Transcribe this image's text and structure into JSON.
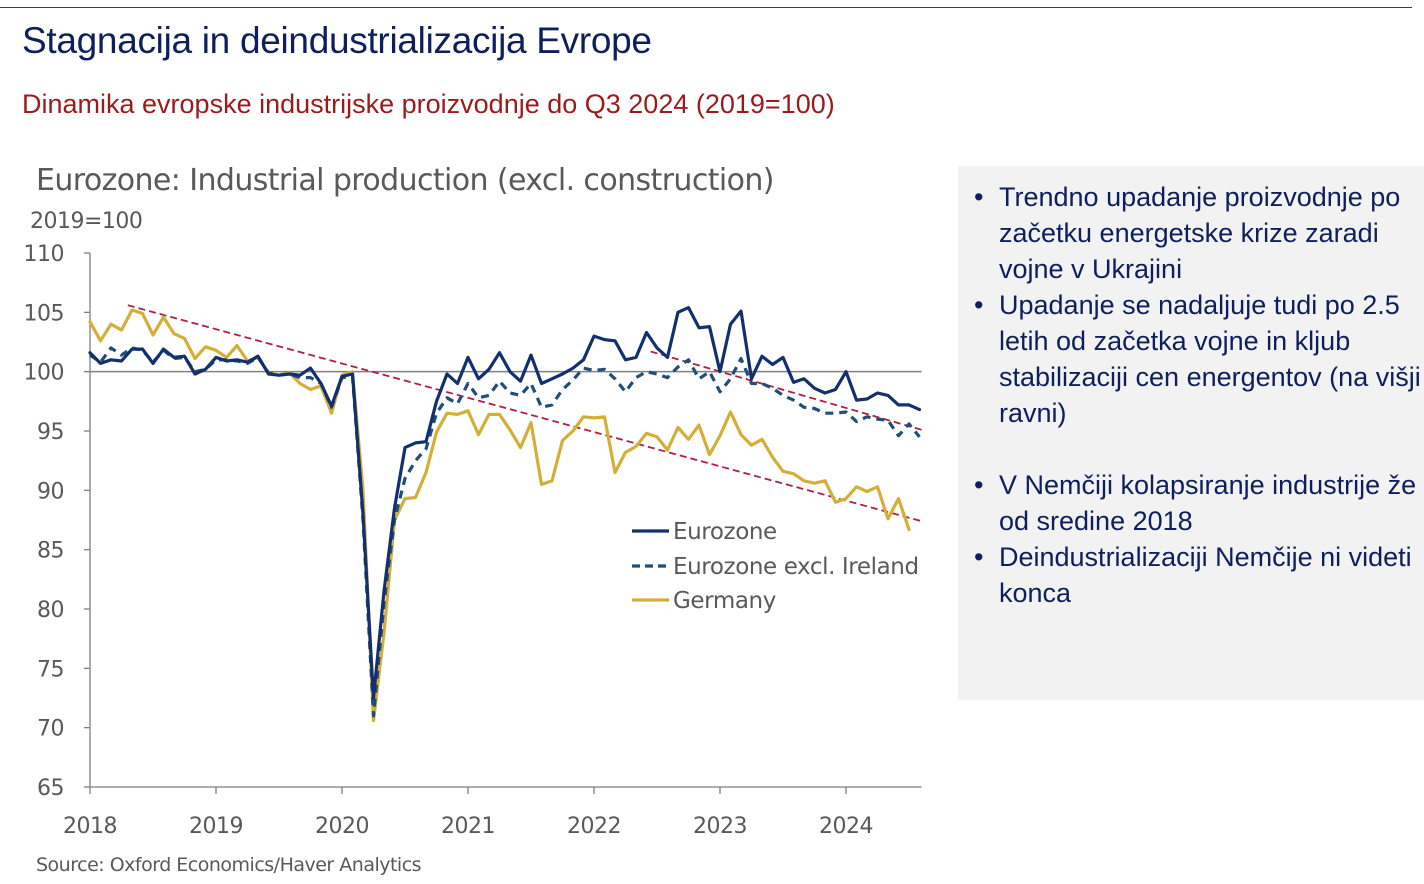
{
  "slide": {
    "title": "Stagnacija in deindustrializacija Evrope",
    "subtitle": "Dinamika evropske industrijske proizvodnje do Q3 2024 (2019=100)"
  },
  "sidebar": {
    "bullets_group1": [
      "Trendno upadanje proizvodnje po začetku energetske krize zaradi vojne v Ukrajini",
      "Upadanje se nadaljuje tudi po 2.5 letih od začetka vojne in kljub stabilizaciji cen energentov (na višji ravni)"
    ],
    "bullets_group2": [
      "V Nemčiji kolapsiranje industrije že od sredine 2018",
      "Deindustrializaciji Nemčije ni videti konca"
    ]
  },
  "colors": {
    "title": "#0d1f5c",
    "subtitle": "#9b1b1b",
    "eurozone": "#13306e",
    "eurozone_excl_ireland": "#1f4e79",
    "germany": "#d4af37",
    "trendline": "#b0203f",
    "sidebar_bg": "#f2f2f2"
  },
  "chart_data": {
    "type": "line",
    "title": "Eurozone: Industrial production (excl. construction)",
    "ylabel": "2019=100",
    "xlabel": "",
    "source": "Source: Oxford Economics/Haver Analytics",
    "ylim": [
      65,
      110
    ],
    "yticks": [
      110,
      105,
      100,
      95,
      90,
      85,
      80,
      75,
      70,
      65
    ],
    "xlim": [
      2018.0,
      2024.6
    ],
    "xticks": [
      "2018",
      "2019",
      "2020",
      "2021",
      "2022",
      "2023",
      "2024"
    ],
    "reference_line": 100,
    "grid": false,
    "legend_position": "center-right",
    "x_start": "2018-01",
    "frequency": "monthly",
    "series": [
      {
        "name": "Eurozone",
        "style": "solid",
        "values": [
          101.6,
          100.7,
          101.0,
          100.9,
          101.9,
          101.9,
          100.7,
          101.9,
          101.2,
          101.3,
          99.8,
          100.2,
          101.2,
          100.9,
          101.0,
          100.8,
          101.3,
          99.8,
          99.7,
          99.8,
          99.7,
          100.3,
          99.0,
          97.1,
          99.6,
          99.8,
          88.0,
          72.5,
          81.5,
          88.5,
          93.6,
          94.0,
          94.1,
          97.5,
          99.8,
          99.0,
          101.2,
          99.4,
          100.2,
          101.6,
          100.0,
          99.2,
          101.4,
          99.0,
          99.4,
          99.8,
          100.3,
          101.0,
          103.0,
          102.7,
          102.6,
          101.0,
          101.2,
          103.3,
          102.0,
          101.2,
          105.0,
          105.4,
          103.7,
          103.8,
          100.0,
          104.0,
          105.1,
          99.4,
          101.3,
          100.6,
          101.2,
          99.1,
          99.4,
          98.6,
          98.2,
          98.5,
          100.0,
          97.6,
          97.7,
          98.2,
          98.0,
          97.2,
          97.2,
          96.8
        ]
      },
      {
        "name": "Eurozone excl. Ireland",
        "style": "dashed",
        "values": [
          101.4,
          100.8,
          102.0,
          101.4,
          102.0,
          101.8,
          100.8,
          101.8,
          101.1,
          101.2,
          100.0,
          100.2,
          101.0,
          101.0,
          100.9,
          100.7,
          101.2,
          99.9,
          99.7,
          99.8,
          99.5,
          99.5,
          99.0,
          97.0,
          99.5,
          99.6,
          87.5,
          71.0,
          80.5,
          87.5,
          91.0,
          92.5,
          93.5,
          96.5,
          97.8,
          97.3,
          99.0,
          97.8,
          98.0,
          99.2,
          98.2,
          98.0,
          99.0,
          97.0,
          97.2,
          98.5,
          99.3,
          100.3,
          100.1,
          100.2,
          99.4,
          98.3,
          99.5,
          100.0,
          99.8,
          99.5,
          100.4,
          101.0,
          99.4,
          100.0,
          98.3,
          99.4,
          101.1,
          99.0,
          99.0,
          98.6,
          98.0,
          97.6,
          97.0,
          96.9,
          96.5,
          96.5,
          96.6,
          95.8,
          96.2,
          96.0,
          95.9,
          94.6,
          95.6,
          94.5
        ]
      },
      {
        "name": "Germany",
        "style": "solid",
        "values": [
          104.2,
          102.6,
          104.0,
          103.5,
          105.2,
          104.9,
          103.1,
          104.6,
          103.2,
          102.8,
          101.1,
          102.1,
          101.8,
          101.2,
          102.2,
          100.9,
          101.2,
          99.9,
          99.7,
          99.9,
          99.0,
          98.5,
          98.8,
          96.5,
          99.7,
          100.0,
          90.0,
          70.6,
          78.0,
          87.5,
          89.3,
          89.4,
          91.5,
          94.9,
          96.5,
          96.4,
          96.7,
          94.7,
          96.4,
          96.4,
          95.1,
          93.6,
          95.7,
          90.5,
          90.8,
          94.2,
          95.0,
          96.2,
          96.1,
          96.2,
          91.5,
          93.2,
          93.7,
          94.8,
          94.5,
          93.4,
          95.3,
          94.3,
          95.5,
          93.0,
          94.6,
          96.6,
          94.7,
          93.8,
          94.3,
          92.8,
          91.6,
          91.4,
          90.8,
          90.6,
          90.8,
          89.0,
          89.3,
          90.3,
          89.9,
          90.3,
          87.6,
          89.3,
          86.7
        ]
      }
    ],
    "trendlines": [
      {
        "from": {
          "x": 2018.3,
          "y": 105.6
        },
        "to": {
          "x": 2024.6,
          "y": 87.4
        }
      },
      {
        "from": {
          "x": 2022.45,
          "y": 101.7
        },
        "to": {
          "x": 2024.6,
          "y": 95.1
        }
      }
    ]
  }
}
